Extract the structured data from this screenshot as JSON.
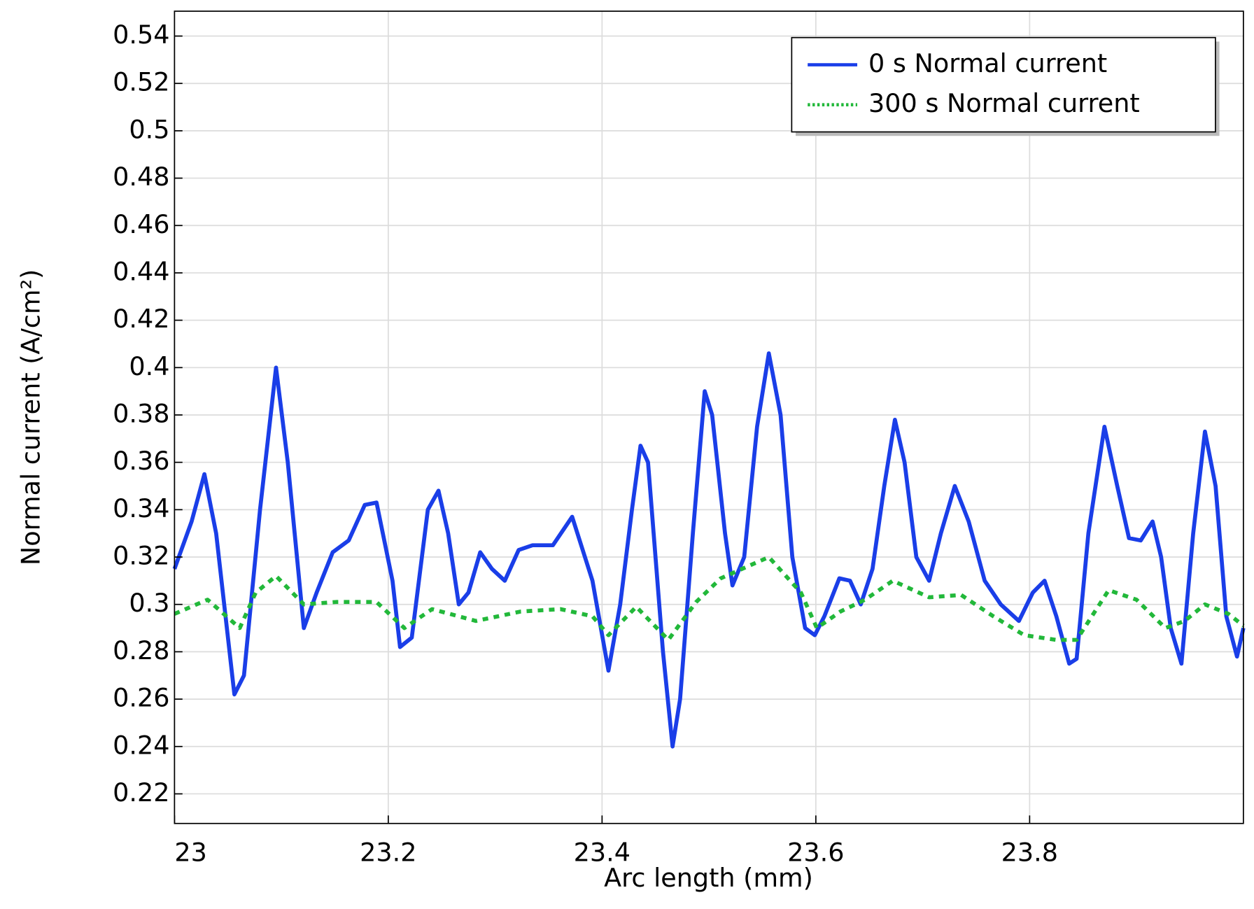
{
  "chart_data": {
    "type": "line",
    "xlabel": "Arc length (mm)",
    "ylabel": "Normal current (A/cm²)",
    "xlim": [
      23,
      24
    ],
    "ylim": [
      0.2075,
      0.5505
    ],
    "xticks": [
      23,
      23.2,
      23.4,
      23.6,
      23.8
    ],
    "yticks": [
      0.22,
      0.24,
      0.26,
      0.28,
      0.3,
      0.32,
      0.34,
      0.36,
      0.38,
      0.4,
      0.42,
      0.44,
      0.46,
      0.48,
      0.5,
      0.52,
      0.54
    ],
    "grid": true,
    "legend": "upper right",
    "series": [
      {
        "name": "0 s Normal current",
        "color": "#1a3ee8",
        "style": "solid",
        "x": [
          23.0,
          23.016,
          23.028,
          23.039,
          23.056,
          23.065,
          23.08,
          23.095,
          23.106,
          23.121,
          23.133,
          23.148,
          23.163,
          23.178,
          23.189,
          23.204,
          23.211,
          23.222,
          23.237,
          23.247,
          23.256,
          23.266,
          23.275,
          23.286,
          23.297,
          23.309,
          23.322,
          23.335,
          23.354,
          23.372,
          23.391,
          23.406,
          23.417,
          23.428,
          23.436,
          23.443,
          23.457,
          23.466,
          23.473,
          23.485,
          23.496,
          23.503,
          23.515,
          23.522,
          23.533,
          23.545,
          23.556,
          23.567,
          23.578,
          23.59,
          23.599,
          23.608,
          23.622,
          23.632,
          23.642,
          23.653,
          23.664,
          23.674,
          23.683,
          23.694,
          23.706,
          23.717,
          23.73,
          23.743,
          23.758,
          23.773,
          23.79,
          23.803,
          23.814,
          23.825,
          23.837,
          23.844,
          23.855,
          23.87,
          23.882,
          23.893,
          23.904,
          23.915,
          23.923,
          23.932,
          23.942,
          23.953,
          23.964,
          23.974,
          23.984,
          23.994,
          24.0
        ],
        "values": [
          0.315,
          0.335,
          0.355,
          0.33,
          0.262,
          0.27,
          0.34,
          0.4,
          0.36,
          0.29,
          0.305,
          0.322,
          0.327,
          0.342,
          0.343,
          0.31,
          0.282,
          0.286,
          0.34,
          0.348,
          0.33,
          0.3,
          0.305,
          0.322,
          0.315,
          0.31,
          0.323,
          0.325,
          0.325,
          0.337,
          0.31,
          0.272,
          0.3,
          0.34,
          0.367,
          0.36,
          0.28,
          0.24,
          0.26,
          0.33,
          0.39,
          0.38,
          0.33,
          0.308,
          0.32,
          0.375,
          0.406,
          0.38,
          0.32,
          0.29,
          0.287,
          0.295,
          0.311,
          0.31,
          0.3,
          0.315,
          0.35,
          0.378,
          0.36,
          0.32,
          0.31,
          0.33,
          0.35,
          0.335,
          0.31,
          0.3,
          0.293,
          0.305,
          0.31,
          0.295,
          0.275,
          0.277,
          0.33,
          0.375,
          0.35,
          0.328,
          0.327,
          0.335,
          0.32,
          0.29,
          0.275,
          0.33,
          0.373,
          0.35,
          0.295,
          0.278,
          0.29
        ]
      },
      {
        "name": "300 s Normal current",
        "color": "#22b83a",
        "style": "dotted",
        "x": [
          23.0,
          23.031,
          23.061,
          23.076,
          23.095,
          23.121,
          23.151,
          23.189,
          23.215,
          23.241,
          23.282,
          23.324,
          23.361,
          23.391,
          23.406,
          23.432,
          23.462,
          23.488,
          23.511,
          23.556,
          23.586,
          23.601,
          23.623,
          23.646,
          23.672,
          23.706,
          23.736,
          23.766,
          23.795,
          23.825,
          23.844,
          23.874,
          23.9,
          23.927,
          23.945,
          23.964,
          23.986,
          24.0
        ],
        "values": [
          0.296,
          0.302,
          0.29,
          0.305,
          0.312,
          0.3,
          0.301,
          0.301,
          0.29,
          0.298,
          0.293,
          0.297,
          0.298,
          0.295,
          0.287,
          0.299,
          0.285,
          0.301,
          0.311,
          0.32,
          0.305,
          0.29,
          0.297,
          0.302,
          0.31,
          0.303,
          0.304,
          0.295,
          0.287,
          0.285,
          0.285,
          0.306,
          0.302,
          0.29,
          0.293,
          0.3,
          0.296,
          0.291
        ]
      }
    ]
  }
}
